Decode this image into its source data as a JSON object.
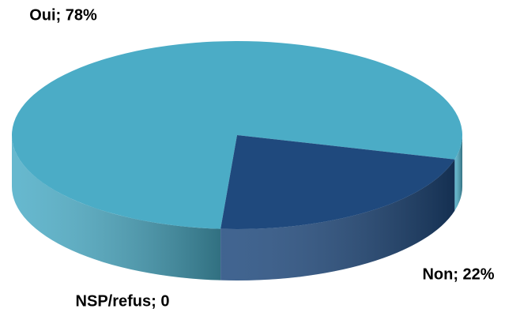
{
  "chart_data": {
    "type": "pie",
    "three_d": true,
    "values": [
      78,
      22,
      0
    ],
    "value_labels": [
      "Oui; 78%",
      "Non; 22%",
      "NSP/refus; 0"
    ],
    "colors": [
      "#4bacc6",
      "#1f497d",
      "#8064a2"
    ]
  }
}
